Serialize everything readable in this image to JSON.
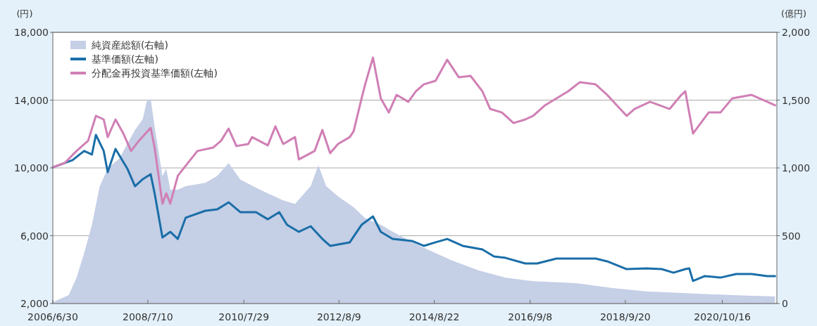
{
  "chart_data": {
    "type": "line",
    "ylabel": "(円)",
    "y2label": "(億円)",
    "legend": "top left",
    "grid": "y",
    "xlim": [
      "2006-06-30",
      "2021-12-15"
    ],
    "xticks": [
      {
        "value": "2006-06-30",
        "label": "2006/6/30"
      },
      {
        "value": "2008-07-10",
        "label": "2008/7/10"
      },
      {
        "value": "2010-07-29",
        "label": "2010/7/29"
      },
      {
        "value": "2012-08-09",
        "label": "2012/8/9"
      },
      {
        "value": "2014-08-22",
        "label": "2014/8/22"
      },
      {
        "value": "2016-09-08",
        "label": "2016/9/8"
      },
      {
        "value": "2018-09-20",
        "label": "2018/9/20"
      },
      {
        "value": "2020-10-16",
        "label": "2020/10/16"
      }
    ],
    "ylim": [
      2000,
      18000
    ],
    "yticks": [
      {
        "value": 2000,
        "label": "2,000"
      },
      {
        "value": 6000,
        "label": "6,000"
      },
      {
        "value": 10000,
        "label": "10,000"
      },
      {
        "value": 14000,
        "label": "14,000"
      },
      {
        "value": 18000,
        "label": "18,000"
      }
    ],
    "y2lim": [
      0,
      2000
    ],
    "y2ticks": [
      0,
      500,
      {
        "value": 1000,
        "label": "1,000"
      },
      {
        "value": 1500,
        "label": "1,500"
      },
      {
        "value": 2000,
        "label": "2,000"
      }
    ],
    "series": [
      {
        "name": "純資産総額(右軸)",
        "type": "area",
        "axis": "y2",
        "color": "#c5cfe6",
        "x": [
          "2006-07",
          "2006-11",
          "2007-01",
          "2007-03",
          "2007-05",
          "2007-07",
          "2007-09",
          "2007-12",
          "2008-04",
          "2008-06",
          "2008-07",
          "2008-08",
          "2008-09",
          "2008-11",
          "2008-12",
          "2009-01",
          "2009-03",
          "2009-05",
          "2009-10",
          "2010-01",
          "2010-04",
          "2010-07",
          "2010-12",
          "2011-06",
          "2011-09",
          "2012-01",
          "2012-03",
          "2012-05",
          "2012-08",
          "2012-12",
          "2013-03",
          "2013-07",
          "2013-10",
          "2014-05",
          "2015-01",
          "2015-08",
          "2016-03",
          "2016-10",
          "2017-09",
          "2018-06",
          "2019-03",
          "2020-02",
          "2021-01",
          "2021-12"
        ],
        "values": [
          10,
          62,
          190,
          370,
          580,
          865,
          995,
          1070,
          1280,
          1360,
          1490,
          1510,
          1305,
          940,
          995,
          840,
          840,
          865,
          890,
          940,
          1035,
          915,
          840,
          760,
          735,
          865,
          1020,
          865,
          790,
          710,
          630,
          580,
          530,
          425,
          320,
          245,
          190,
          165,
          150,
          115,
          90,
          75,
          62,
          52
        ]
      },
      {
        "name": "基準価額(左軸)",
        "color": "#1a6ea8",
        "x": [
          "2006-07",
          "2006-12",
          "2007-03",
          "2007-05",
          "2007-06",
          "2007-08",
          "2007-09",
          "2007-11",
          "2008-02",
          "2008-04",
          "2008-06",
          "2008-08",
          "2008-09",
          "2008-11",
          "2009-01",
          "2009-03",
          "2009-05",
          "2009-10",
          "2010-01",
          "2010-04",
          "2010-07",
          "2010-11",
          "2011-02",
          "2011-05",
          "2011-07",
          "2011-10",
          "2012-01",
          "2012-04",
          "2012-06",
          "2012-11",
          "2013-02",
          "2013-05",
          "2013-07",
          "2013-10",
          "2014-03",
          "2014-06",
          "2014-09",
          "2014-12",
          "2015-04",
          "2015-09",
          "2015-12",
          "2016-03",
          "2016-08",
          "2016-11",
          "2017-04",
          "2017-09",
          "2018-02",
          "2018-05",
          "2018-10",
          "2019-03",
          "2019-07",
          "2019-10",
          "2020-01",
          "2020-02",
          "2020-03",
          "2020-06",
          "2020-10",
          "2021-02",
          "2021-06",
          "2021-10",
          "2021-12"
        ],
        "values": [
          10040,
          10460,
          11000,
          10790,
          11950,
          11000,
          9750,
          11120,
          9960,
          8920,
          9340,
          9630,
          8500,
          5900,
          6230,
          5810,
          7060,
          7470,
          7550,
          7970,
          7390,
          7390,
          6970,
          7390,
          6640,
          6230,
          6560,
          5810,
          5400,
          5610,
          6640,
          7140,
          6230,
          5810,
          5690,
          5400,
          5610,
          5810,
          5400,
          5190,
          4780,
          4690,
          4360,
          4360,
          4650,
          4650,
          4650,
          4490,
          4030,
          4070,
          4030,
          3820,
          4030,
          4070,
          3330,
          3620,
          3530,
          3740,
          3740,
          3620,
          3620
        ]
      },
      {
        "name": "分配金再投資基準価額(左軸)",
        "color": "#d07fb5",
        "x": [
          "2006-07",
          "2006-10",
          "2007-01",
          "2007-04",
          "2007-06",
          "2007-08",
          "2007-09",
          "2007-11",
          "2008-01",
          "2008-03",
          "2008-05",
          "2008-08",
          "2008-09",
          "2008-11",
          "2008-12",
          "2009-01",
          "2009-03",
          "2009-08",
          "2009-12",
          "2010-02",
          "2010-04",
          "2010-06",
          "2010-09",
          "2010-10",
          "2011-02",
          "2011-04",
          "2011-06",
          "2011-09",
          "2011-10",
          "2012-02",
          "2012-04",
          "2012-06",
          "2012-08",
          "2012-11",
          "2012-12",
          "2013-02",
          "2013-03",
          "2013-05",
          "2013-07",
          "2013-09",
          "2013-11",
          "2014-02",
          "2014-04",
          "2014-06",
          "2014-09",
          "2014-12",
          "2015-03",
          "2015-06",
          "2015-09",
          "2015-11",
          "2016-02",
          "2016-05",
          "2016-08",
          "2016-10",
          "2017-01",
          "2017-04",
          "2017-07",
          "2017-10",
          "2018-02",
          "2018-05",
          "2018-10",
          "2018-12",
          "2019-04",
          "2019-09",
          "2019-12",
          "2020-01",
          "2020-03",
          "2020-07",
          "2020-10",
          "2021-01",
          "2021-06",
          "2021-10",
          "2021-12"
        ],
        "values": [
          10040,
          10290,
          11000,
          11600,
          13070,
          12860,
          11820,
          12860,
          12030,
          11000,
          11600,
          12360,
          11200,
          7890,
          8500,
          7890,
          9540,
          11000,
          11200,
          11600,
          12320,
          11290,
          11410,
          11820,
          11330,
          12450,
          11410,
          11820,
          10500,
          11000,
          12240,
          10870,
          11410,
          11820,
          12160,
          14100,
          14930,
          16510,
          14100,
          13270,
          14310,
          13900,
          14520,
          14930,
          15140,
          16380,
          15350,
          15430,
          14520,
          13480,
          13270,
          12650,
          12860,
          13070,
          13690,
          14100,
          14520,
          15060,
          14930,
          14310,
          13070,
          13480,
          13900,
          13480,
          14310,
          14520,
          12030,
          13270,
          13270,
          14100,
          14310,
          13900,
          13690
        ]
      }
    ]
  }
}
